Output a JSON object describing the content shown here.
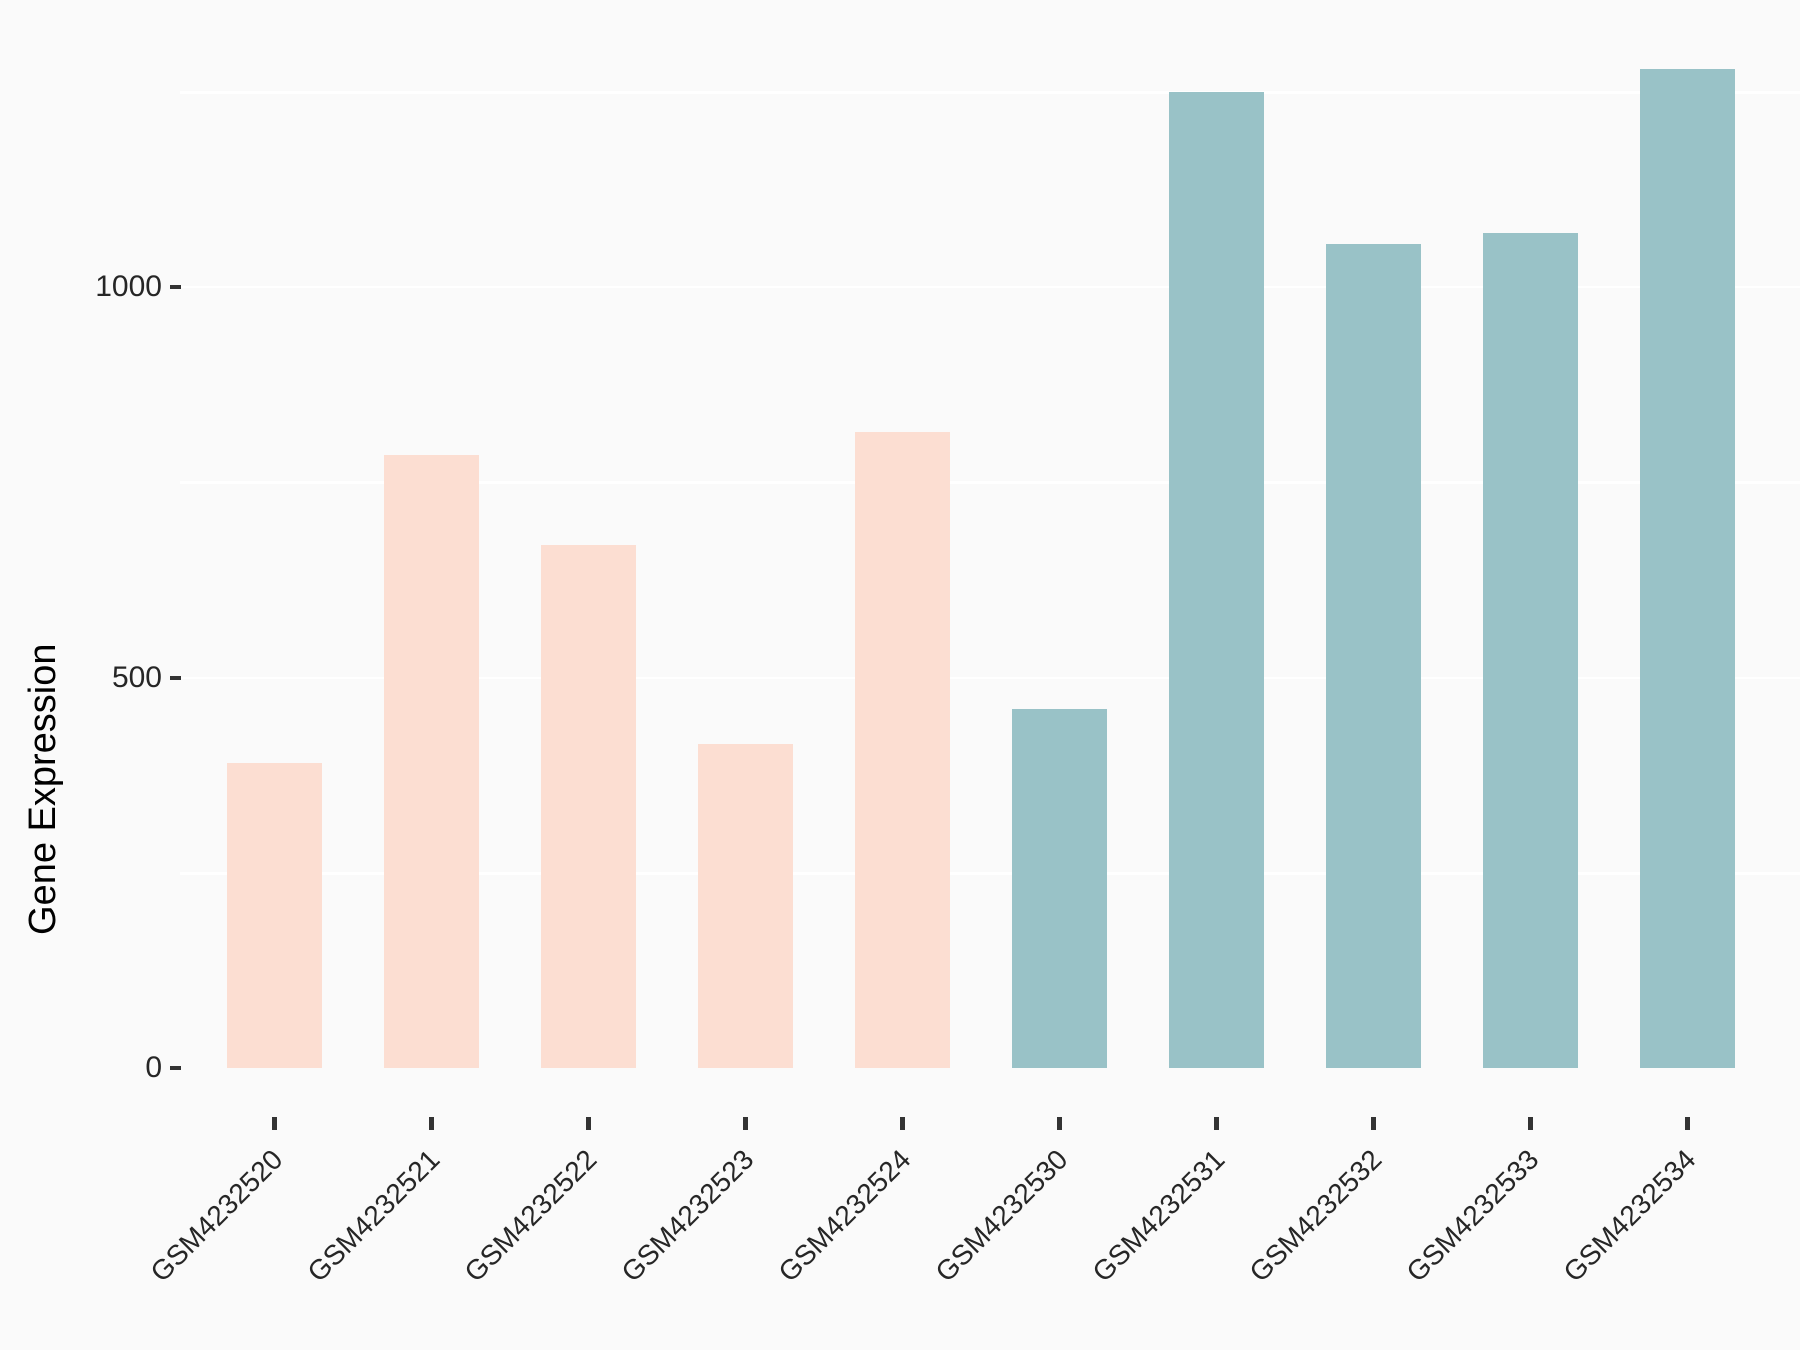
{
  "chart_data": {
    "type": "bar",
    "title": "",
    "xlabel": "",
    "ylabel": "Gene Expression",
    "categories": [
      "GSM4232520",
      "GSM4232521",
      "GSM4232522",
      "GSM4232523",
      "GSM4232524",
      "GSM4232530",
      "GSM4232531",
      "GSM4232532",
      "GSM4232533",
      "GSM4232534"
    ],
    "values": [
      390,
      785,
      670,
      415,
      815,
      460,
      1250,
      1055,
      1070,
      1280
    ],
    "bar_colors": [
      "#FCDED2",
      "#FCDED2",
      "#FCDED2",
      "#FCDED2",
      "#FCDED2",
      "#99C2C7",
      "#99C2C7",
      "#99C2C7",
      "#99C2C7",
      "#99C2C7"
    ],
    "group_colors": {
      "pink_group": "#FCDED2",
      "teal_group": "#99C2C7"
    },
    "ylim": [
      0,
      1345
    ],
    "yticks": [
      0,
      500,
      1000
    ],
    "ytick_labels": [
      "0",
      "500",
      "1000"
    ],
    "yticks_minor": [
      250,
      750,
      1250
    ],
    "grid": "on",
    "gridline_color": "#FFFFFF",
    "panel_background": "#FAFAFA",
    "legend": "none",
    "axis_text_color": "#262626",
    "tick_mark_color": "#333333"
  }
}
